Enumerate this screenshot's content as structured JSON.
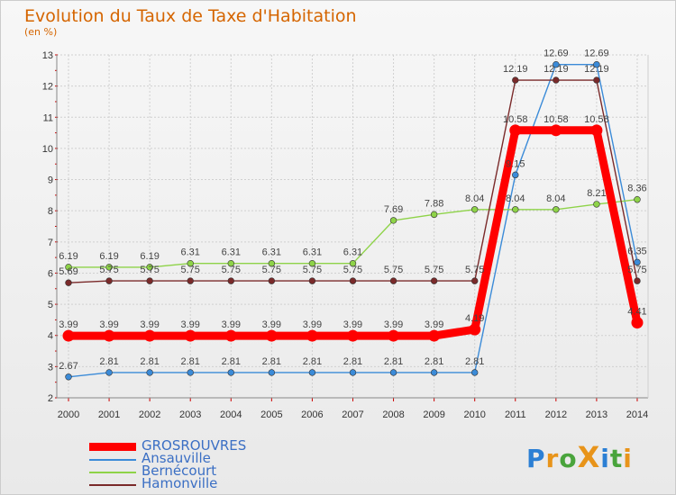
{
  "chart_data": {
    "type": "line",
    "title": "Evolution du Taux de Taxe d'Habitation",
    "unit_label": "(en %)",
    "x": [
      2000,
      2001,
      2002,
      2003,
      2004,
      2005,
      2006,
      2007,
      2008,
      2009,
      2010,
      2011,
      2012,
      2013,
      2014
    ],
    "ylim": [
      2,
      13
    ],
    "yticks": [
      2,
      3,
      4,
      5,
      6,
      7,
      8,
      9,
      10,
      11,
      12,
      13
    ],
    "grid": true,
    "legend_position": "bottom-left",
    "series": [
      {
        "name": "GROSROUVRES",
        "color": "#ff0000",
        "emphasis": true,
        "values": [
          3.99,
          3.99,
          3.99,
          3.99,
          3.99,
          3.99,
          3.99,
          3.99,
          3.99,
          3.99,
          4.19,
          10.58,
          10.58,
          10.58,
          4.41
        ],
        "labels": [
          "3.99",
          "3.99",
          "3.99",
          "3.99",
          "3.99",
          "3.99",
          "3.99",
          "3.99",
          "3.99",
          "3.99",
          "4.19",
          "10.58",
          "10.58",
          "10.58",
          "4.41"
        ]
      },
      {
        "name": "Ansauville",
        "color": "#3b8bd8",
        "emphasis": false,
        "values": [
          2.67,
          2.81,
          2.81,
          2.81,
          2.81,
          2.81,
          2.81,
          2.81,
          2.81,
          2.81,
          2.81,
          9.15,
          12.69,
          12.69,
          6.35
        ],
        "labels": [
          "2.67",
          "2.81",
          "2.81",
          "2.81",
          "2.81",
          "2.81",
          "2.81",
          "2.81",
          "2.81",
          "2.81",
          "2.81",
          "9.15",
          "12.69",
          "12.69",
          "6.35"
        ]
      },
      {
        "name": "Bernécourt",
        "color": "#8ed348",
        "emphasis": false,
        "values": [
          6.19,
          6.19,
          6.19,
          6.31,
          6.31,
          6.31,
          6.31,
          6.31,
          7.69,
          7.88,
          8.04,
          8.04,
          8.04,
          8.21,
          8.36
        ],
        "labels": [
          "6.19",
          "6.19",
          "6.19",
          "6.31",
          "6.31",
          "6.31",
          "6.31",
          "6.31",
          "7.69",
          "7.88",
          "8.04",
          "8.04",
          "8.04",
          "8.21",
          "8.36"
        ]
      },
      {
        "name": "Hamonville",
        "color": "#7a2a2a",
        "emphasis": false,
        "values": [
          5.69,
          5.75,
          5.75,
          5.75,
          5.75,
          5.75,
          5.75,
          5.75,
          5.75,
          5.75,
          5.75,
          12.19,
          12.19,
          12.19,
          5.75
        ],
        "labels": [
          "5.69",
          "5.75",
          "5.75",
          "5.75",
          "5.75",
          "5.75",
          "5.75",
          "5.75",
          "5.75",
          "5.75",
          "5.75",
          "12.19",
          "12.19",
          "12.19",
          "5.75"
        ]
      }
    ]
  },
  "logo": {
    "text": "ProXiti",
    "letter_colors": [
      "#2b7fd4",
      "#e8941a",
      "#49a43c",
      "#e8941a",
      "#2b7fd4",
      "#49a43c",
      "#e8941a"
    ]
  }
}
